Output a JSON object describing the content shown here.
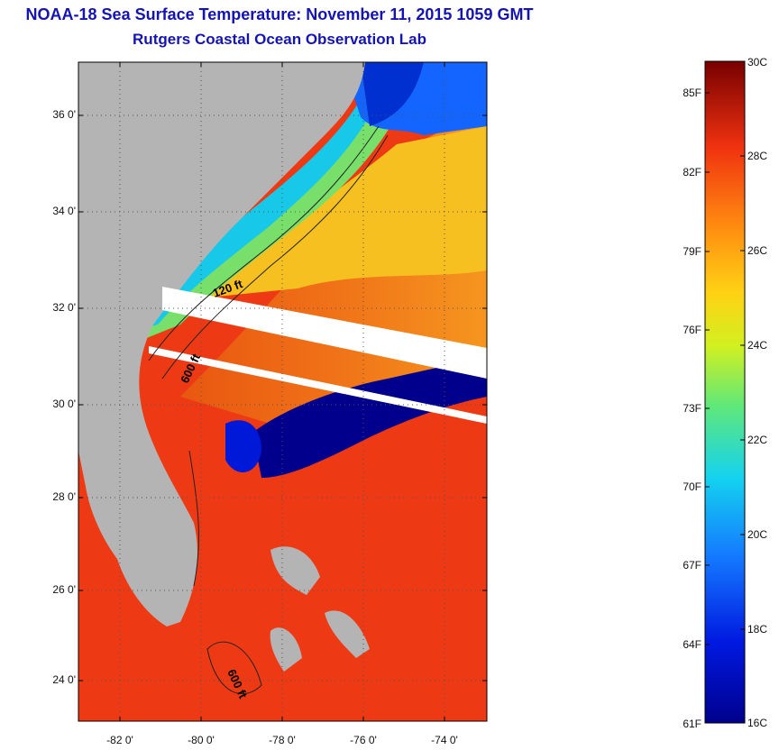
{
  "title_line1": "NOAA-18 Sea Surface Temperature:  November 11, 2015 1059 GMT",
  "title_line2": "Rutgers Coastal Ocean Observation Lab",
  "lat_labels": [
    "36 0'",
    "34 0'",
    "32 0'",
    "30 0'",
    "28 0'",
    "26 0'",
    "24 0'"
  ],
  "lon_labels": [
    "-82 0'",
    "-80 0'",
    "-78 0'",
    "-76 0'",
    "-74 0'"
  ],
  "isobaths": [
    "120 ft",
    "600 ft",
    "600 ft"
  ],
  "colorbar": {
    "f_labels": [
      "85F",
      "82F",
      "79F",
      "76F",
      "73F",
      "70F",
      "67F",
      "64F",
      "61F"
    ],
    "c_labels": [
      "30C",
      "28C",
      "26C",
      "24C",
      "22C",
      "20C",
      "18C",
      "16C"
    ]
  },
  "colors": {
    "land": "#b4b4b4",
    "title": "#1414b4",
    "cloud": "#00008c"
  }
}
